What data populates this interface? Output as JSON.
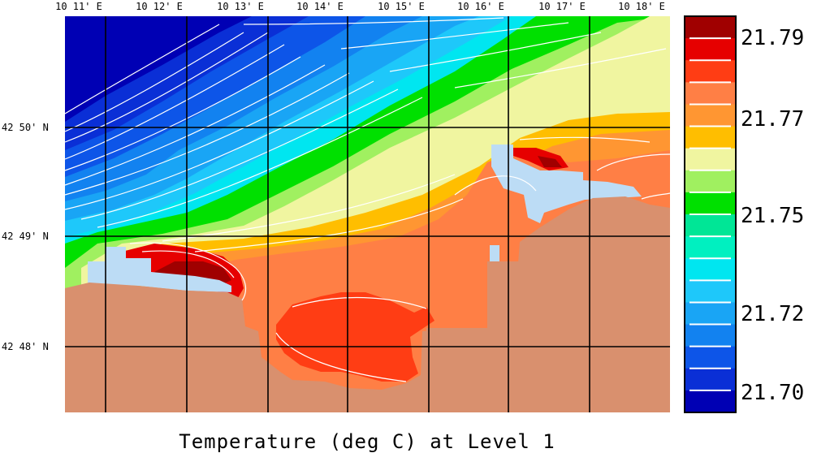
{
  "title": "Temperature (deg C) at Level 1",
  "x_axis": {
    "ticks": [
      "10 11' E",
      "10 12' E",
      "10 13' E",
      "10 14' E",
      "10 15' E",
      "10 16' E",
      "10 17' E",
      "10 18' E"
    ],
    "range": [
      10.17,
      10.305
    ]
  },
  "y_axis": {
    "ticks": [
      "42 50' N",
      "42 49' N",
      "42 48' N"
    ],
    "range": [
      42.795,
      42.8505
    ]
  },
  "colorbar": {
    "labels": [
      "21.79",
      "21.77",
      "21.75",
      "21.72",
      "21.70"
    ],
    "levels": [
      21.7,
      21.71,
      21.72,
      21.73,
      21.74,
      21.75,
      21.755,
      21.76,
      21.765,
      21.77,
      21.775,
      21.78,
      21.785,
      21.79
    ],
    "colors": [
      "#0000b4",
      "#0a2fd6",
      "#0d55e8",
      "#1282f0",
      "#19a5f5",
      "#1ec8fa",
      "#00e6f0",
      "#00f0c0",
      "#00e696",
      "#00e000",
      "#a0f060",
      "#f0f5a0",
      "#ffbe00",
      "#ff9632",
      "#ff7f45",
      "#ff3d14",
      "#e60000",
      "#a00000"
    ],
    "land_color": "#d9906e",
    "missing_color": "#bcdcf5"
  },
  "chart_data": {
    "type": "heatmap",
    "title": "Temperature (deg C) at Level 1",
    "xlabel": "",
    "ylabel": "",
    "xlim": [
      10.17,
      10.305
    ],
    "ylim": [
      42.795,
      42.8505
    ],
    "x_ticks": [
      "10 11' E",
      "10 12' E",
      "10 13' E",
      "10 14' E",
      "10 15' E",
      "10 16' E",
      "10 17' E",
      "10 18' E"
    ],
    "y_ticks": [
      "42 50' N",
      "42 49' N",
      "42 48' N"
    ],
    "grid": true,
    "colorbar_labels": [
      "21.79",
      "21.77",
      "21.75",
      "21.72",
      "21.70"
    ],
    "value_range": [
      21.7,
      21.79
    ],
    "units": "deg C"
  }
}
